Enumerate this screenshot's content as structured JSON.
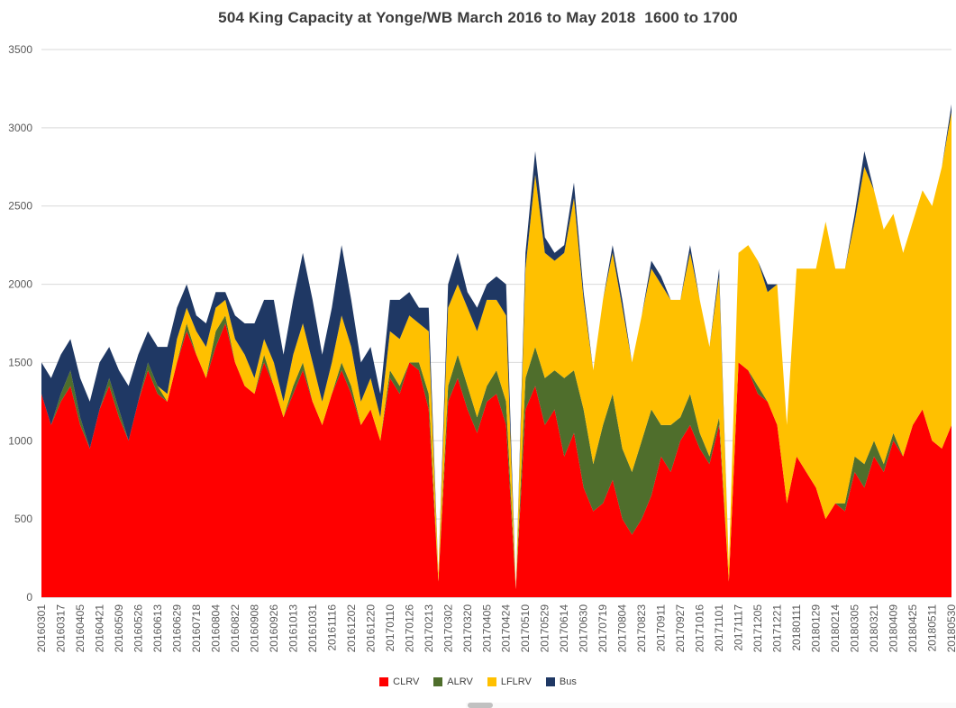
{
  "chart_data": {
    "type": "area",
    "stacked": true,
    "title": "504 King Capacity at Yonge/WB March 2016 to May 2018  1600 to 1700",
    "xlabel": "",
    "ylabel": "",
    "ylim": [
      0,
      3500
    ],
    "y_ticks": [
      0,
      500,
      1000,
      1500,
      2000,
      2500,
      3000,
      3500
    ],
    "grid": true,
    "legend_position": "bottom",
    "axis_text_color": "#595959",
    "grid_color": "#D9D9D9",
    "points_per_tick_interval": 2,
    "x_tick_labels": [
      "20160301",
      "20160317",
      "20160405",
      "20160421",
      "20160509",
      "20160526",
      "20160613",
      "20160629",
      "20160718",
      "20160804",
      "20160822",
      "20160908",
      "20160926",
      "20161013",
      "20161031",
      "20161116",
      "20161202",
      "20161220",
      "20170110",
      "20170126",
      "20170213",
      "20170302",
      "20170320",
      "20170405",
      "20170424",
      "20170510",
      "20170529",
      "20170614",
      "20170630",
      "20170719",
      "20170804",
      "20170823",
      "20170911",
      "20170927",
      "20171016",
      "20171101",
      "20171117",
      "20171205",
      "20171221",
      "20180111",
      "20180129",
      "20180214",
      "20180305",
      "20180321",
      "20180409",
      "20180425",
      "20180511",
      "20180530"
    ],
    "series": [
      {
        "name": "CLRV",
        "color": "#FF0000",
        "values": [
          1300,
          1100,
          1250,
          1350,
          1100,
          950,
          1200,
          1350,
          1150,
          1000,
          1250,
          1450,
          1300,
          1250,
          1500,
          1700,
          1550,
          1400,
          1600,
          1750,
          1500,
          1350,
          1300,
          1500,
          1350,
          1150,
          1300,
          1450,
          1250,
          1100,
          1300,
          1450,
          1300,
          1100,
          1200,
          1000,
          1400,
          1300,
          1500,
          1450,
          1200,
          100,
          1250,
          1400,
          1200,
          1050,
          1250,
          1300,
          1100,
          50,
          1200,
          1350,
          1100,
          1200,
          900,
          1050,
          700,
          550,
          600,
          750,
          500,
          400,
          500,
          650,
          900,
          800,
          1000,
          1100,
          950,
          850,
          1100,
          100,
          1500,
          1450,
          1300,
          1250,
          1100,
          600,
          900,
          800,
          700,
          500,
          600,
          550,
          800,
          700,
          900,
          800,
          1000,
          900,
          1100,
          1200,
          1000,
          950,
          1100
        ]
      },
      {
        "name": "ALRV",
        "color": "#4F6E2C",
        "values": [
          0,
          0,
          50,
          100,
          50,
          0,
          0,
          50,
          50,
          0,
          0,
          50,
          50,
          0,
          0,
          50,
          0,
          0,
          100,
          50,
          0,
          0,
          0,
          50,
          0,
          0,
          50,
          50,
          0,
          0,
          0,
          50,
          50,
          0,
          0,
          0,
          50,
          50,
          0,
          50,
          100,
          0,
          100,
          150,
          150,
          100,
          100,
          150,
          150,
          0,
          200,
          250,
          300,
          250,
          500,
          400,
          500,
          300,
          500,
          550,
          450,
          400,
          500,
          550,
          200,
          300,
          150,
          200,
          100,
          50,
          50,
          0,
          0,
          0,
          50,
          0,
          0,
          0,
          0,
          0,
          0,
          0,
          0,
          50,
          100,
          150,
          100,
          50,
          50,
          0,
          0,
          0,
          0,
          0,
          0
        ]
      },
      {
        "name": "LFLRV",
        "color": "#FFC000",
        "values": [
          0,
          0,
          0,
          0,
          0,
          0,
          0,
          0,
          0,
          0,
          0,
          0,
          0,
          50,
          150,
          100,
          150,
          200,
          150,
          100,
          150,
          200,
          100,
          100,
          150,
          100,
          200,
          250,
          250,
          150,
          200,
          300,
          250,
          150,
          200,
          150,
          250,
          300,
          300,
          250,
          400,
          50,
          500,
          450,
          500,
          550,
          550,
          450,
          550,
          0,
          700,
          1100,
          800,
          700,
          800,
          1100,
          700,
          600,
          800,
          900,
          900,
          700,
          800,
          900,
          900,
          800,
          750,
          900,
          850,
          700,
          900,
          100,
          700,
          800,
          800,
          700,
          900,
          500,
          1200,
          1300,
          1400,
          1900,
          1500,
          1500,
          1500,
          1900,
          1600,
          1500,
          1400,
          1300,
          1300,
          1400,
          1500,
          1800,
          2000
        ]
      },
      {
        "name": "Bus",
        "color": "#1F3864",
        "values": [
          200,
          300,
          250,
          200,
          250,
          300,
          300,
          200,
          250,
          350,
          300,
          200,
          250,
          300,
          200,
          150,
          100,
          150,
          100,
          50,
          150,
          200,
          350,
          250,
          400,
          300,
          350,
          450,
          400,
          300,
          350,
          450,
          300,
          250,
          200,
          150,
          200,
          250,
          150,
          100,
          150,
          0,
          150,
          200,
          100,
          150,
          100,
          150,
          200,
          0,
          100,
          150,
          100,
          50,
          50,
          100,
          50,
          0,
          0,
          50,
          50,
          0,
          0,
          50,
          50,
          0,
          0,
          50,
          0,
          0,
          50,
          0,
          0,
          0,
          0,
          50,
          0,
          0,
          0,
          0,
          0,
          0,
          0,
          0,
          50,
          100,
          0,
          0,
          0,
          0,
          0,
          0,
          0,
          0,
          50
        ]
      }
    ]
  }
}
